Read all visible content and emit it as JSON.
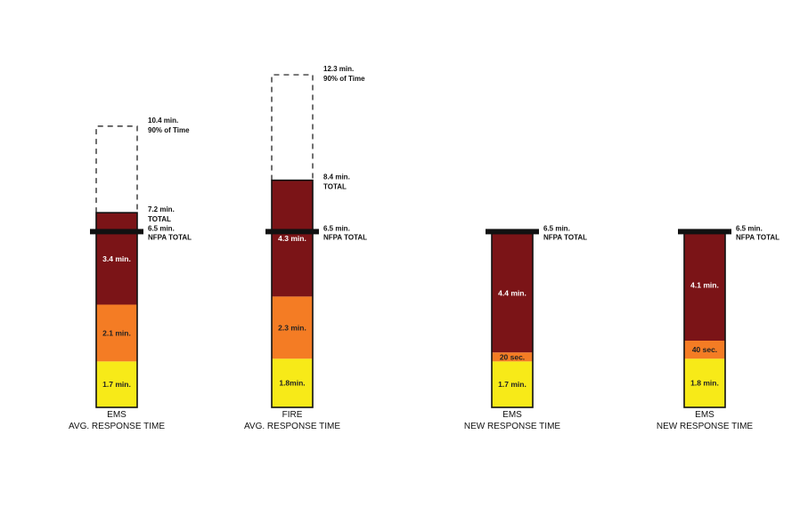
{
  "chart_data": {
    "type": "bar",
    "stacked": true,
    "unit": "min.",
    "nfpa_total": 6.5,
    "bars": [
      {
        "category_line1": "EMS",
        "category_line2": "AVG. RESPONSE TIME",
        "segments": [
          {
            "value": 1.7,
            "label": "1.7 min.",
            "color": "#f7ea18"
          },
          {
            "value": 2.1,
            "label": "2.1 min.",
            "color": "#f47c24"
          },
          {
            "value": 3.4,
            "label": "3.4 min.",
            "color": "#7b1417"
          }
        ],
        "total": 7.2,
        "total_label": [
          "7.2 min.",
          "TOTAL"
        ],
        "p90": 10.4,
        "p90_label": [
          "10.4 min.",
          "90% of Time"
        ],
        "nfpa_label": [
          "6.5 min.",
          "NFPA TOTAL"
        ]
      },
      {
        "category_line1": "FIRE",
        "category_line2": "AVG. RESPONSE TIME",
        "segments": [
          {
            "value": 1.8,
            "label": "1.8min.",
            "color": "#f7ea18"
          },
          {
            "value": 2.3,
            "label": "2.3 min.",
            "color": "#f47c24"
          },
          {
            "value": 4.3,
            "label": "4.3 min.",
            "color": "#7b1417"
          }
        ],
        "total": 8.4,
        "total_label": [
          "8.4 min.",
          "TOTAL"
        ],
        "p90": 12.3,
        "p90_label": [
          "12.3 min.",
          "90% of Time"
        ],
        "nfpa_label": [
          "6.5 min.",
          "NFPA TOTAL"
        ]
      },
      {
        "category_line1": "EMS",
        "category_line2": "NEW RESPONSE TIME",
        "segments": [
          {
            "value": 1.7,
            "label": "1.7 min.",
            "color": "#f7ea18"
          },
          {
            "value": 0.333,
            "label": "20 sec.",
            "color": "#f47c24"
          },
          {
            "value": 4.4,
            "label": "4.4 min.",
            "color": "#7b1417"
          }
        ],
        "total": 6.5,
        "nfpa_label": [
          "6.5 min.",
          "NFPA TOTAL"
        ]
      },
      {
        "category_line1": "EMS",
        "category_line2": "NEW RESPONSE TIME",
        "segments": [
          {
            "value": 1.8,
            "label": "1.8 min.",
            "color": "#f7ea18"
          },
          {
            "value": 0.667,
            "label": "40 sec.",
            "color": "#f47c24"
          },
          {
            "value": 4.1,
            "label": "4.1 min.",
            "color": "#7b1417"
          }
        ],
        "total": 6.5,
        "nfpa_label": [
          "6.5 min.",
          "NFPA TOTAL"
        ]
      }
    ]
  }
}
